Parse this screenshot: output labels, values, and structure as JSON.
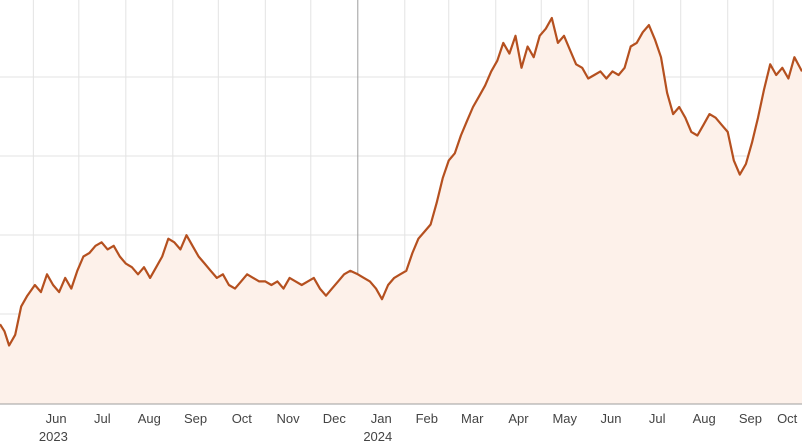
{
  "chart_data": {
    "type": "area",
    "title": "",
    "xlabel": "",
    "ylabel": "",
    "grid": true,
    "y_axis_labels_visible": false,
    "colors": {
      "line": "#b5501f",
      "fill": "#fdf1ea",
      "grid": "#e3e3e3",
      "year_divider": "#9e9e9e"
    },
    "x_ticks": [
      {
        "label": "Jun",
        "date": "2023-06-01"
      },
      {
        "label": "Jul",
        "date": "2023-07-01"
      },
      {
        "label": "Aug",
        "date": "2023-08-01"
      },
      {
        "label": "Sep",
        "date": "2023-09-01"
      },
      {
        "label": "Oct",
        "date": "2023-10-01"
      },
      {
        "label": "Nov",
        "date": "2023-11-01"
      },
      {
        "label": "Dec",
        "date": "2023-12-01"
      },
      {
        "label": "Jan",
        "date": "2024-01-01"
      },
      {
        "label": "Feb",
        "date": "2024-02-01"
      },
      {
        "label": "Mar",
        "date": "2024-03-01"
      },
      {
        "label": "Apr",
        "date": "2024-04-01"
      },
      {
        "label": "May",
        "date": "2024-05-01"
      },
      {
        "label": "Jun",
        "date": "2024-06-01"
      },
      {
        "label": "Jul",
        "date": "2024-07-01"
      },
      {
        "label": "Aug",
        "date": "2024-08-01"
      },
      {
        "label": "Sep",
        "date": "2024-09-01"
      },
      {
        "label": "Oct",
        "date": "2024-10-01"
      }
    ],
    "year_labels": [
      {
        "label": "2023",
        "date": "2023-06-01"
      },
      {
        "label": "2024",
        "date": "2024-01-01"
      }
    ],
    "year_divider_date": "2024-01-01",
    "x_range": [
      "2023-05-10",
      "2024-10-20"
    ],
    "ylim": [
      0,
      100
    ],
    "series": [
      {
        "values": [
          [
            "2023-05-10",
            14
          ],
          [
            "2023-05-13",
            12
          ],
          [
            "2023-05-16",
            8
          ],
          [
            "2023-05-20",
            11
          ],
          [
            "2023-05-24",
            19
          ],
          [
            "2023-05-28",
            22
          ],
          [
            "2023-06-02",
            25
          ],
          [
            "2023-06-06",
            23
          ],
          [
            "2023-06-10",
            28
          ],
          [
            "2023-06-14",
            25
          ],
          [
            "2023-06-18",
            23
          ],
          [
            "2023-06-22",
            27
          ],
          [
            "2023-06-26",
            24
          ],
          [
            "2023-06-30",
            29
          ],
          [
            "2023-07-04",
            33
          ],
          [
            "2023-07-08",
            34
          ],
          [
            "2023-07-12",
            36
          ],
          [
            "2023-07-16",
            37
          ],
          [
            "2023-07-20",
            35
          ],
          [
            "2023-07-24",
            36
          ],
          [
            "2023-07-28",
            33
          ],
          [
            "2023-08-01",
            31
          ],
          [
            "2023-08-05",
            30
          ],
          [
            "2023-08-09",
            28
          ],
          [
            "2023-08-13",
            30
          ],
          [
            "2023-08-17",
            27
          ],
          [
            "2023-08-21",
            30
          ],
          [
            "2023-08-25",
            33
          ],
          [
            "2023-08-29",
            38
          ],
          [
            "2023-09-02",
            37
          ],
          [
            "2023-09-06",
            35
          ],
          [
            "2023-09-10",
            39
          ],
          [
            "2023-09-14",
            36
          ],
          [
            "2023-09-18",
            33
          ],
          [
            "2023-09-22",
            31
          ],
          [
            "2023-09-26",
            29
          ],
          [
            "2023-09-30",
            27
          ],
          [
            "2023-10-04",
            28
          ],
          [
            "2023-10-08",
            25
          ],
          [
            "2023-10-12",
            24
          ],
          [
            "2023-10-16",
            26
          ],
          [
            "2023-10-20",
            28
          ],
          [
            "2023-10-24",
            27
          ],
          [
            "2023-10-28",
            26
          ],
          [
            "2023-11-01",
            26
          ],
          [
            "2023-11-05",
            25
          ],
          [
            "2023-11-09",
            26
          ],
          [
            "2023-11-13",
            24
          ],
          [
            "2023-11-17",
            27
          ],
          [
            "2023-11-21",
            26
          ],
          [
            "2023-11-25",
            25
          ],
          [
            "2023-11-29",
            26
          ],
          [
            "2023-12-03",
            27
          ],
          [
            "2023-12-07",
            24
          ],
          [
            "2023-12-11",
            22
          ],
          [
            "2023-12-15",
            24
          ],
          [
            "2023-12-19",
            26
          ],
          [
            "2023-12-23",
            28
          ],
          [
            "2023-12-27",
            29
          ],
          [
            "2024-01-01",
            28
          ],
          [
            "2024-01-05",
            27
          ],
          [
            "2024-01-09",
            26
          ],
          [
            "2024-01-13",
            24
          ],
          [
            "2024-01-17",
            21
          ],
          [
            "2024-01-21",
            25
          ],
          [
            "2024-01-25",
            27
          ],
          [
            "2024-01-29",
            28
          ],
          [
            "2024-02-02",
            29
          ],
          [
            "2024-02-06",
            34
          ],
          [
            "2024-02-10",
            38
          ],
          [
            "2024-02-14",
            40
          ],
          [
            "2024-02-18",
            42
          ],
          [
            "2024-02-22",
            48
          ],
          [
            "2024-02-26",
            55
          ],
          [
            "2024-03-01",
            60
          ],
          [
            "2024-03-05",
            62
          ],
          [
            "2024-03-09",
            67
          ],
          [
            "2024-03-13",
            71
          ],
          [
            "2024-03-17",
            75
          ],
          [
            "2024-03-21",
            78
          ],
          [
            "2024-03-25",
            81
          ],
          [
            "2024-03-29",
            85
          ],
          [
            "2024-04-02",
            88
          ],
          [
            "2024-04-06",
            93
          ],
          [
            "2024-04-10",
            90
          ],
          [
            "2024-04-14",
            95
          ],
          [
            "2024-04-18",
            86
          ],
          [
            "2024-04-22",
            92
          ],
          [
            "2024-04-26",
            89
          ],
          [
            "2024-04-30",
            95
          ],
          [
            "2024-05-04",
            97
          ],
          [
            "2024-05-08",
            100
          ],
          [
            "2024-05-12",
            93
          ],
          [
            "2024-05-16",
            95
          ],
          [
            "2024-05-20",
            91
          ],
          [
            "2024-05-24",
            87
          ],
          [
            "2024-05-28",
            86
          ],
          [
            "2024-06-01",
            83
          ],
          [
            "2024-06-05",
            84
          ],
          [
            "2024-06-09",
            85
          ],
          [
            "2024-06-13",
            83
          ],
          [
            "2024-06-17",
            85
          ],
          [
            "2024-06-21",
            84
          ],
          [
            "2024-06-25",
            86
          ],
          [
            "2024-06-29",
            92
          ],
          [
            "2024-07-03",
            93
          ],
          [
            "2024-07-07",
            96
          ],
          [
            "2024-07-11",
            98
          ],
          [
            "2024-07-15",
            94
          ],
          [
            "2024-07-19",
            89
          ],
          [
            "2024-07-23",
            79
          ],
          [
            "2024-07-27",
            73
          ],
          [
            "2024-07-31",
            75
          ],
          [
            "2024-08-04",
            72
          ],
          [
            "2024-08-08",
            68
          ],
          [
            "2024-08-12",
            67
          ],
          [
            "2024-08-16",
            70
          ],
          [
            "2024-08-20",
            73
          ],
          [
            "2024-08-24",
            72
          ],
          [
            "2024-08-28",
            70
          ],
          [
            "2024-09-01",
            68
          ],
          [
            "2024-09-05",
            60
          ],
          [
            "2024-09-09",
            56
          ],
          [
            "2024-09-13",
            59
          ],
          [
            "2024-09-17",
            65
          ],
          [
            "2024-09-21",
            72
          ],
          [
            "2024-09-25",
            80
          ],
          [
            "2024-09-29",
            87
          ],
          [
            "2024-10-03",
            84
          ],
          [
            "2024-10-07",
            86
          ],
          [
            "2024-10-11",
            83
          ],
          [
            "2024-10-15",
            89
          ],
          [
            "2024-10-20",
            85
          ]
        ]
      }
    ]
  }
}
